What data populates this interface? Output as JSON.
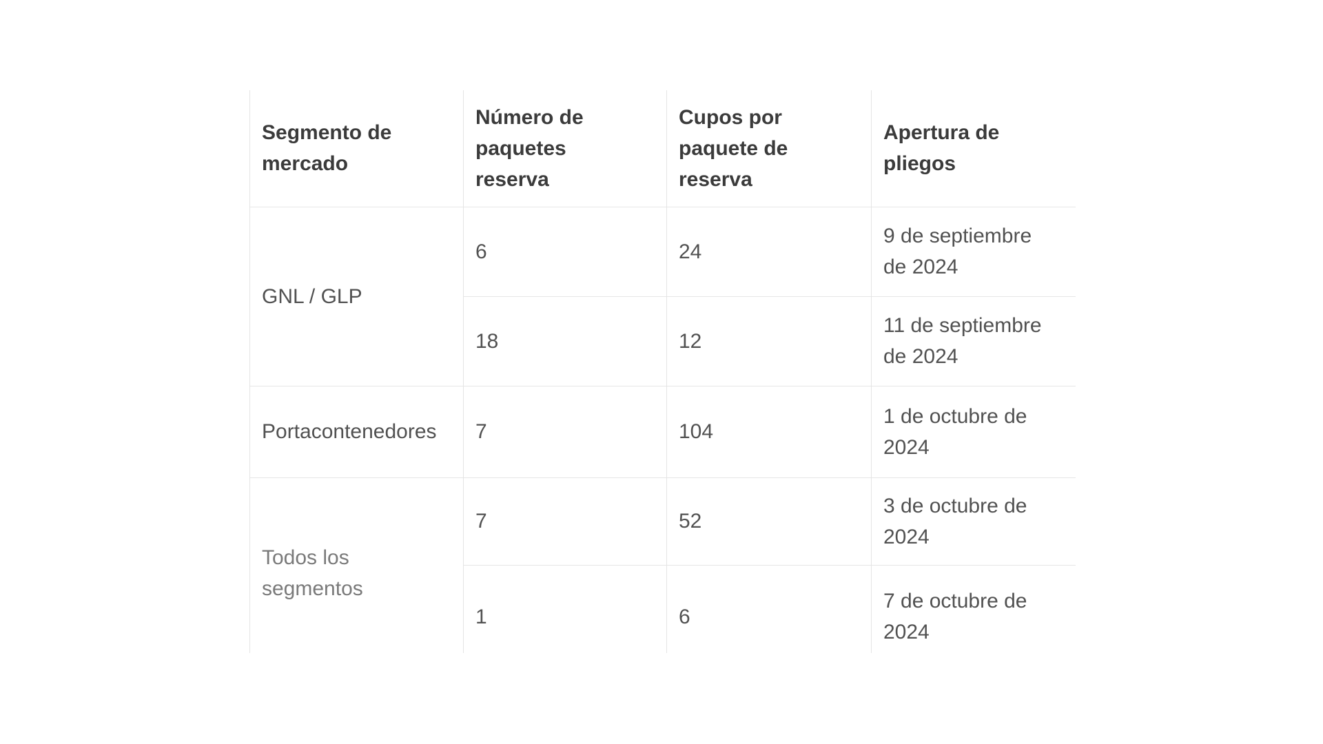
{
  "table": {
    "columns": [
      {
        "label": "Segmento de\nmercado"
      },
      {
        "label": "Número de\npaquetes\nreserva"
      },
      {
        "label": "Cupos por\npaquete de\nreserva"
      },
      {
        "label": "Apertura de\npliegos"
      }
    ],
    "rows": [
      {
        "segment": "GNL / GLP",
        "paquetes": "6",
        "cupos": "24",
        "apertura": "9 de septiembre\nde 2024"
      },
      {
        "paquetes": "18",
        "cupos": "12",
        "apertura": "11 de septiembre\nde 2024"
      },
      {
        "segment": "Portacontenedores",
        "paquetes": "7",
        "cupos": "104",
        "apertura": "1 de octubre de\n2024"
      },
      {
        "segment": "Todos los\nsegmentos",
        "paquetes": "7",
        "cupos": "52",
        "apertura": "3 de octubre de\n2024"
      },
      {
        "paquetes": "1",
        "cupos": "6",
        "apertura": "7 de octubre de\n2024"
      }
    ],
    "colors": {
      "header_text": "#3b3b3b",
      "body_text": "#515151",
      "muted_text": "#7a7a7a",
      "border": "#e4e4e4",
      "background": "#ffffff"
    }
  }
}
